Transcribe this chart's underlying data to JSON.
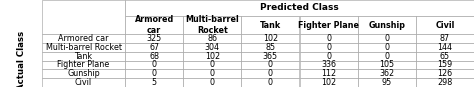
{
  "predicted_class_label": "Predicted Class",
  "actual_class_label": "Actual Class",
  "col_headers": [
    "Armored\ncar",
    "Multi-barrel\nRocket",
    "Tank",
    "Fighter Plane",
    "Gunship",
    "Civil"
  ],
  "row_headers": [
    "Armored car",
    "Multi-barrel Rocket",
    "Tank",
    "Fighter Plane",
    "Gunship",
    "Civil"
  ],
  "matrix": [
    [
      325,
      86,
      102,
      0,
      0,
      87
    ],
    [
      67,
      304,
      85,
      0,
      0,
      144
    ],
    [
      68,
      102,
      365,
      0,
      0,
      65
    ],
    [
      0,
      0,
      0,
      336,
      105,
      159
    ],
    [
      0,
      0,
      0,
      112,
      362,
      126
    ],
    [
      5,
      0,
      0,
      102,
      95,
      298
    ]
  ],
  "bg": "#ffffff",
  "line_color": "#999999",
  "text_color": "#000000",
  "data_fs": 5.8,
  "header_fs": 6.2,
  "actual_fs": 6.2
}
